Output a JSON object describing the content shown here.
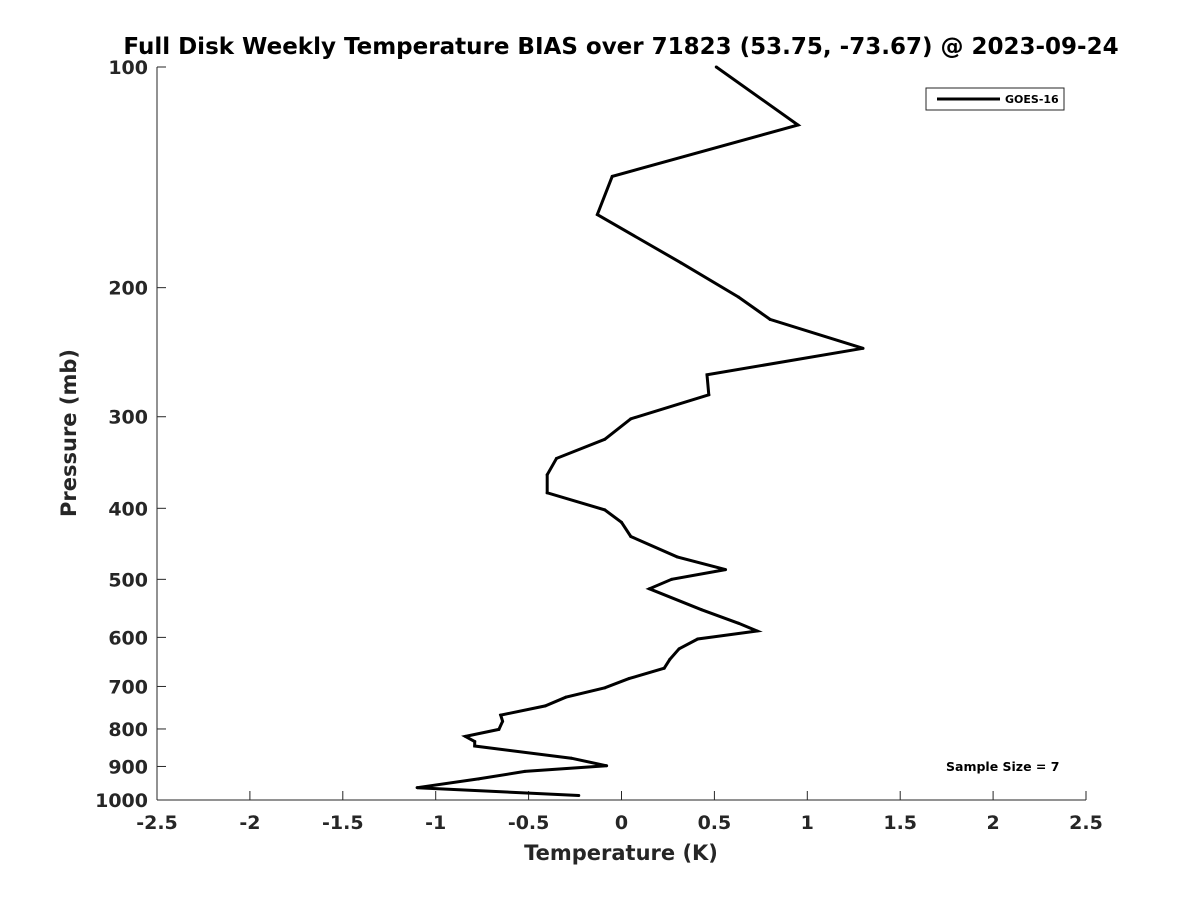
{
  "chart_data": {
    "type": "line",
    "title": "Full Disk Weekly Temperature BIAS over 71823 (53.75, -73.67) @ 2023-09-24",
    "xlabel": "Temperature (K)",
    "ylabel": "Pressure (mb)",
    "xlim": [
      -2.5,
      2.5
    ],
    "ylim": [
      100,
      1000
    ],
    "yscale": "log",
    "y_reversed": true,
    "grid": false,
    "legend_position": "top-right",
    "x_ticks": [
      "-2.5",
      "-2",
      "-1.5",
      "-1",
      "-0.5",
      "0",
      "0.5",
      "1",
      "1.5",
      "2",
      "2.5"
    ],
    "y_ticks": [
      "100",
      "200",
      "300",
      "400",
      "500",
      "600",
      "700",
      "800",
      "900",
      "1000"
    ],
    "series": [
      {
        "name": "GOES-16",
        "color": "#000000",
        "points": [
          {
            "x": 0.51,
            "p": 100
          },
          {
            "x": 0.95,
            "p": 120
          },
          {
            "x": -0.05,
            "p": 141
          },
          {
            "x": -0.13,
            "p": 159
          },
          {
            "x": 0.32,
            "p": 185
          },
          {
            "x": 0.63,
            "p": 206
          },
          {
            "x": 0.8,
            "p": 221
          },
          {
            "x": 1.3,
            "p": 242
          },
          {
            "x": 0.46,
            "p": 263
          },
          {
            "x": 0.47,
            "p": 280
          },
          {
            "x": 0.05,
            "p": 302
          },
          {
            "x": -0.09,
            "p": 322
          },
          {
            "x": -0.35,
            "p": 342
          },
          {
            "x": -0.4,
            "p": 360
          },
          {
            "x": -0.4,
            "p": 381
          },
          {
            "x": -0.09,
            "p": 402
          },
          {
            "x": 0,
            "p": 418
          },
          {
            "x": 0.05,
            "p": 437
          },
          {
            "x": 0.3,
            "p": 466
          },
          {
            "x": 0.56,
            "p": 485
          },
          {
            "x": 0.27,
            "p": 500
          },
          {
            "x": 0.15,
            "p": 515
          },
          {
            "x": 0.43,
            "p": 550
          },
          {
            "x": 0.63,
            "p": 574
          },
          {
            "x": 0.73,
            "p": 588
          },
          {
            "x": 0.41,
            "p": 603
          },
          {
            "x": 0.31,
            "p": 622
          },
          {
            "x": 0.26,
            "p": 643
          },
          {
            "x": 0.23,
            "p": 661
          },
          {
            "x": 0.04,
            "p": 683
          },
          {
            "x": -0.09,
            "p": 703
          },
          {
            "x": -0.3,
            "p": 724
          },
          {
            "x": -0.41,
            "p": 744
          },
          {
            "x": -0.65,
            "p": 766
          },
          {
            "x": -0.64,
            "p": 781
          },
          {
            "x": -0.66,
            "p": 801
          },
          {
            "x": -0.84,
            "p": 819
          },
          {
            "x": -0.79,
            "p": 832
          },
          {
            "x": -0.79,
            "p": 844
          },
          {
            "x": -0.27,
            "p": 877
          },
          {
            "x": -0.08,
            "p": 898
          },
          {
            "x": -0.52,
            "p": 914
          },
          {
            "x": -0.77,
            "p": 936
          },
          {
            "x": -1.1,
            "p": 962
          },
          {
            "x": -0.23,
            "p": 986
          }
        ]
      }
    ],
    "annotation": "Sample Size = 7"
  }
}
